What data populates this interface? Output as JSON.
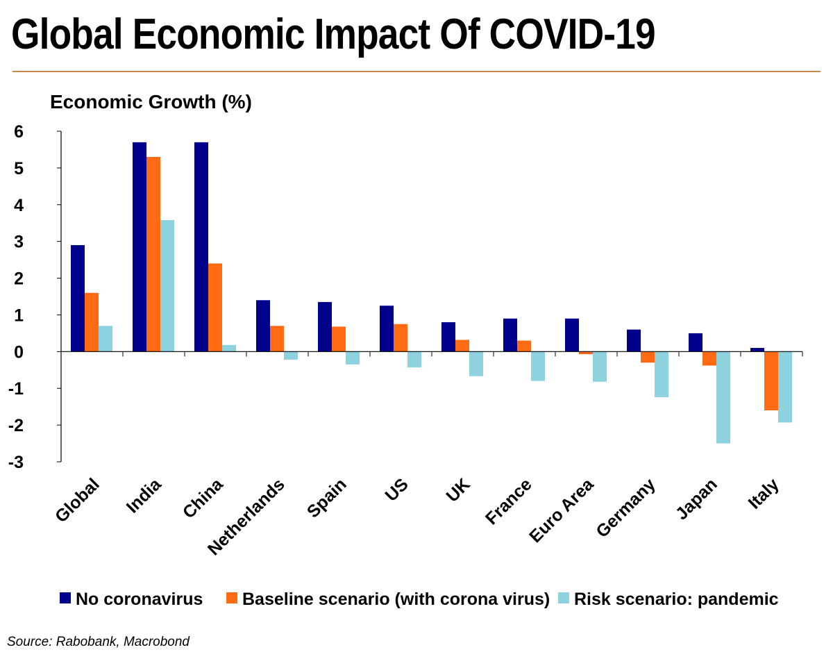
{
  "page": {
    "title": "Global Economic Impact Of COVID-19",
    "source": "Source: Rabobank, Macrobond"
  },
  "colors": {
    "title_rule": "#c9864a",
    "axis": "#000000"
  },
  "chart_data": {
    "type": "bar",
    "title": "Global Economic Impact Of COVID-19",
    "ylabel": "Economic Growth (%)",
    "xlabel": "",
    "ylim": [
      -3,
      6
    ],
    "yticks": [
      6,
      5,
      4,
      3,
      2,
      1,
      0,
      -1,
      -2,
      -3
    ],
    "grid": false,
    "legend_position": "bottom",
    "categories": [
      "Global",
      "India",
      "China",
      "Netherlands",
      "Spain",
      "US",
      "UK",
      "France",
      "Euro Area",
      "Germany",
      "Japan",
      "Italy"
    ],
    "series": [
      {
        "name": "No coronavirus",
        "color": "#00008b",
        "values": [
          2.9,
          5.7,
          5.7,
          1.4,
          1.35,
          1.25,
          0.8,
          0.9,
          0.9,
          0.6,
          0.5,
          0.1
        ]
      },
      {
        "name": "Baseline scenario (with corona virus)",
        "color": "#ff6a13",
        "values": [
          1.6,
          5.3,
          2.4,
          0.7,
          0.68,
          0.75,
          0.32,
          0.3,
          -0.07,
          -0.3,
          -0.38,
          -1.6
        ]
      },
      {
        "name": "Risk scenario: pandemic",
        "color": "#8ed2e0",
        "values": [
          0.7,
          3.58,
          0.18,
          -0.22,
          -0.35,
          -0.43,
          -0.67,
          -0.8,
          -0.82,
          -1.24,
          -2.5,
          -1.93
        ]
      }
    ]
  }
}
